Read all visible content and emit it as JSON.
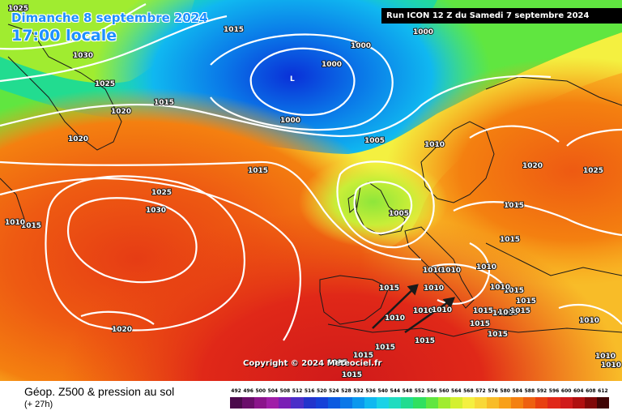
{
  "header": {
    "date_line": "Dimanche 8 septembre 2024",
    "time_line": "17:00 locale",
    "run_info": "Run ICON 12 Z du Samedi 7 septembre 2024"
  },
  "copyright": "Copyright © 2024 Meteociel.fr",
  "legend": {
    "title": "Géop. Z500 & pression au sol",
    "subtitle": "(+ 27h)",
    "scale_values": [
      "492",
      "496",
      "500",
      "504",
      "508",
      "512",
      "516",
      "520",
      "524",
      "528",
      "532",
      "536",
      "540",
      "544",
      "548",
      "552",
      "556",
      "560",
      "564",
      "568",
      "572",
      "576",
      "580",
      "584",
      "588",
      "592",
      "596",
      "600",
      "604",
      "608",
      "612"
    ],
    "scale_colors": [
      "#4b0a4b",
      "#6a0d6a",
      "#8b148b",
      "#a01ea8",
      "#7a1fb5",
      "#4b2ec8",
      "#2233cc",
      "#1540d8",
      "#0b5ae0",
      "#0a78e8",
      "#0a98ee",
      "#10b8f0",
      "#1ad2e6",
      "#20dcc0",
      "#22dc90",
      "#30e060",
      "#60e640",
      "#a0ec30",
      "#d4f030",
      "#f4f040",
      "#f8d838",
      "#f8bc28",
      "#f8a018",
      "#f48010",
      "#ee6010",
      "#e84010",
      "#e02818",
      "#d01a1a",
      "#b01010",
      "#800808",
      "#400404"
    ]
  },
  "isobar_labels": [
    {
      "text": "1025"
    },
    {
      "text": "1030"
    },
    {
      "text": "1025"
    },
    {
      "text": "1020"
    },
    {
      "text": "1015"
    },
    {
      "text": "1020"
    },
    {
      "text": "1015"
    },
    {
      "text": "1000"
    },
    {
      "text": "1000"
    },
    {
      "text": "1000"
    },
    {
      "text": "1000"
    },
    {
      "text": "1005"
    },
    {
      "text": "1010"
    },
    {
      "text": "1015"
    },
    {
      "text": "1020"
    },
    {
      "text": "1025"
    },
    {
      "text": "1015"
    },
    {
      "text": "1005"
    },
    {
      "text": "1025"
    },
    {
      "text": "1030"
    },
    {
      "text": "1010"
    },
    {
      "text": "1015"
    },
    {
      "text": "1020"
    },
    {
      "text": "1015"
    },
    {
      "text": "1010"
    },
    {
      "text": "1010"
    },
    {
      "text": "1010"
    },
    {
      "text": "1010"
    },
    {
      "text": "1010"
    },
    {
      "text": "1010"
    },
    {
      "text": "1015"
    },
    {
      "text": "1015"
    },
    {
      "text": "1015"
    },
    {
      "text": "1015"
    },
    {
      "text": "1015"
    },
    {
      "text": "1015"
    },
    {
      "text": "1015"
    },
    {
      "text": "1010"
    },
    {
      "text": "1010"
    },
    {
      "text": "1015"
    },
    {
      "text": "1010"
    },
    {
      "text": "1015"
    },
    {
      "text": "1015"
    },
    {
      "text": "1015"
    },
    {
      "text": "1015"
    },
    {
      "text": "1015"
    },
    {
      "text": "1010"
    },
    {
      "text": "1010"
    },
    {
      "text": "1015"
    }
  ],
  "low_marker": "L"
}
